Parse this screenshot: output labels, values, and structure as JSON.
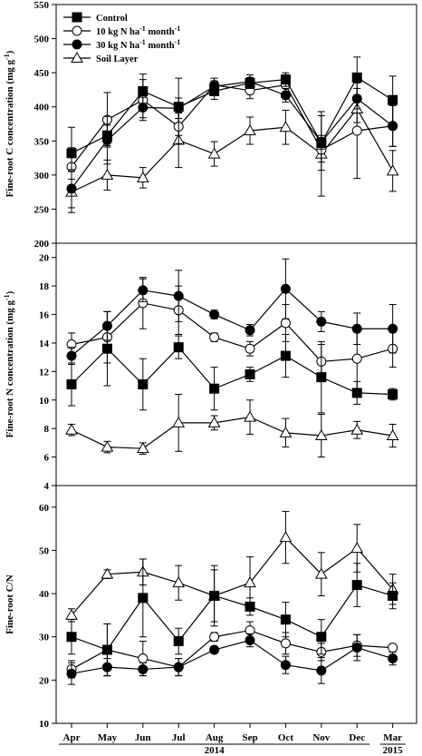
{
  "chart_data": {
    "type": "line",
    "x_categories": [
      "Apr",
      "May",
      "Jun",
      "Jul",
      "Aug",
      "Sep",
      "Oct",
      "Nov",
      "Dec",
      "Mar"
    ],
    "year_labels": [
      {
        "text": "2014",
        "category": "Aug"
      },
      {
        "text": "2015",
        "category": "Mar"
      }
    ],
    "legend": {
      "placement": "top-left",
      "entries": [
        {
          "series": "control",
          "parts": [
            {
              "t": "Control"
            }
          ]
        },
        {
          "series": "n10",
          "parts": [
            {
              "t": "10 kg N ha"
            },
            {
              "t": "-1",
              "sup": true
            },
            {
              "t": " month"
            },
            {
              "t": "-1",
              "sup": true
            }
          ]
        },
        {
          "series": "n30",
          "parts": [
            {
              "t": "30 kg N ha"
            },
            {
              "t": "-1",
              "sup": true
            },
            {
              "t": " month"
            },
            {
              "t": "-1",
              "sup": true
            }
          ]
        },
        {
          "series": "soil",
          "parts": [
            {
              "t": "Soil Layer"
            }
          ]
        }
      ]
    },
    "series_styles": {
      "control": {
        "marker": "square",
        "fill": "#000000"
      },
      "n10": {
        "marker": "circle",
        "fill": "#ffffff"
      },
      "n30": {
        "marker": "circle",
        "fill": "#000000"
      },
      "soil": {
        "marker": "triangle",
        "fill": "#ffffff"
      }
    },
    "panels": [
      {
        "id": "C",
        "ylabel_parts": [
          {
            "t": "Fine-root C concentration (mg g"
          },
          {
            "t": "-1",
            "sup": true
          },
          {
            "t": ")"
          }
        ],
        "ylim": [
          200,
          550
        ],
        "yticks": [
          200,
          250,
          300,
          350,
          400,
          450,
          500,
          550
        ],
        "series": {
          "control": {
            "values": [
              332,
              358,
              423,
              400,
              423,
              435,
              440,
              347,
              443,
              410
            ],
            "errors": [
              38,
              15,
              25,
              42,
              12,
              8,
              10,
              40,
              30,
              35
            ]
          },
          "n10": {
            "values": [
              312,
              381,
              410,
              371,
              432,
              424,
              432,
              337,
              365,
              372
            ],
            "errors": [
              28,
              40,
              30,
              25,
              10,
              12,
              15,
              18,
              70,
              30
            ]
          },
          "n30": {
            "values": [
              280,
              351,
              399,
              398,
              430,
              437,
              417,
              348,
              412,
              372
            ],
            "errors": [
              28,
              35,
              15,
              15,
              8,
              10,
              10,
              10,
              15,
              30
            ]
          },
          "soil": {
            "values": [
              275,
              300,
              296,
              351,
              331,
              365,
              370,
              331,
              397,
              306
            ],
            "errors": [
              30,
              22,
              15,
              40,
              18,
              20,
              25,
              62,
              20,
              30
            ]
          }
        }
      },
      {
        "id": "N",
        "ylabel_parts": [
          {
            "t": "Fine-root N concentration (mg g"
          },
          {
            "t": "-1",
            "sup": true
          },
          {
            "t": ")"
          }
        ],
        "ylim": [
          4,
          21
        ],
        "yticks": [
          4,
          6,
          8,
          10,
          12,
          14,
          16,
          18,
          20
        ],
        "series": {
          "control": {
            "values": [
              11.1,
              13.6,
              11.1,
              13.7,
              10.8,
              11.8,
              13.1,
              11.6,
              10.5,
              10.4
            ],
            "errors": [
              1.5,
              2.6,
              1.8,
              0.8,
              1.5,
              0.5,
              1.5,
              2.5,
              0.8,
              0.4
            ]
          },
          "n10": {
            "values": [
              13.9,
              14.4,
              16.8,
              16.3,
              14.4,
              13.6,
              15.4,
              12.7,
              12.9,
              13.6
            ],
            "errors": [
              0.8,
              1.8,
              1.8,
              1.7,
              0.3,
              0.5,
              1.3,
              1.2,
              2.3,
              1.3
            ]
          },
          "n30": {
            "values": [
              13.1,
              15.2,
              17.7,
              17.3,
              16.0,
              14.9,
              17.8,
              15.5,
              15.0,
              15.0
            ],
            "errors": [
              0.6,
              1.0,
              0.8,
              1.8,
              0.3,
              0.4,
              2.1,
              0.7,
              1.1,
              1.7
            ]
          },
          "soil": {
            "values": [
              7.9,
              6.7,
              6.6,
              8.4,
              8.4,
              8.8,
              7.7,
              7.5,
              7.9,
              7.5
            ],
            "errors": [
              0.4,
              0.4,
              0.4,
              2.0,
              0.5,
              1.2,
              1.0,
              1.5,
              0.6,
              0.8
            ]
          }
        }
      },
      {
        "id": "CN",
        "ylabel_parts": [
          {
            "t": "Fine-root C/N"
          }
        ],
        "ylim": [
          10,
          65
        ],
        "yticks": [
          10,
          20,
          30,
          40,
          50,
          60
        ],
        "series": {
          "control": {
            "values": [
              30,
              27,
              39,
              29,
              39.5,
              37,
              34,
              30,
              42,
              39.5
            ],
            "errors": [
              4,
              6,
              9,
              3,
              6,
              2,
              4,
              4,
              5,
              3
            ]
          },
          "n10": {
            "values": [
              22.5,
              27,
              25,
              23,
              30,
              31.5,
              28.5,
              26.5,
              28,
              27.5
            ],
            "errors": [
              2,
              6,
              4,
              2,
              1,
              2,
              2.5,
              2,
              2.5,
              0.5
            ]
          },
          "n30": {
            "values": [
              21.5,
              23,
              22.5,
              23,
              27,
              29.2,
              23.5,
              22.2,
              27.5,
              25
            ],
            "errors": [
              2.5,
              2,
              1.5,
              2,
              0.5,
              1.5,
              2,
              3,
              3,
              1.5
            ]
          },
          "soil": {
            "values": [
              35,
              44.5,
              45,
              42.5,
              39.5,
              42.5,
              53,
              44.5,
              50.5,
              41
            ],
            "errors": [
              1.5,
              1,
              3,
              4,
              7,
              6,
              6,
              5,
              5.5,
              3.5
            ]
          }
        }
      }
    ]
  }
}
